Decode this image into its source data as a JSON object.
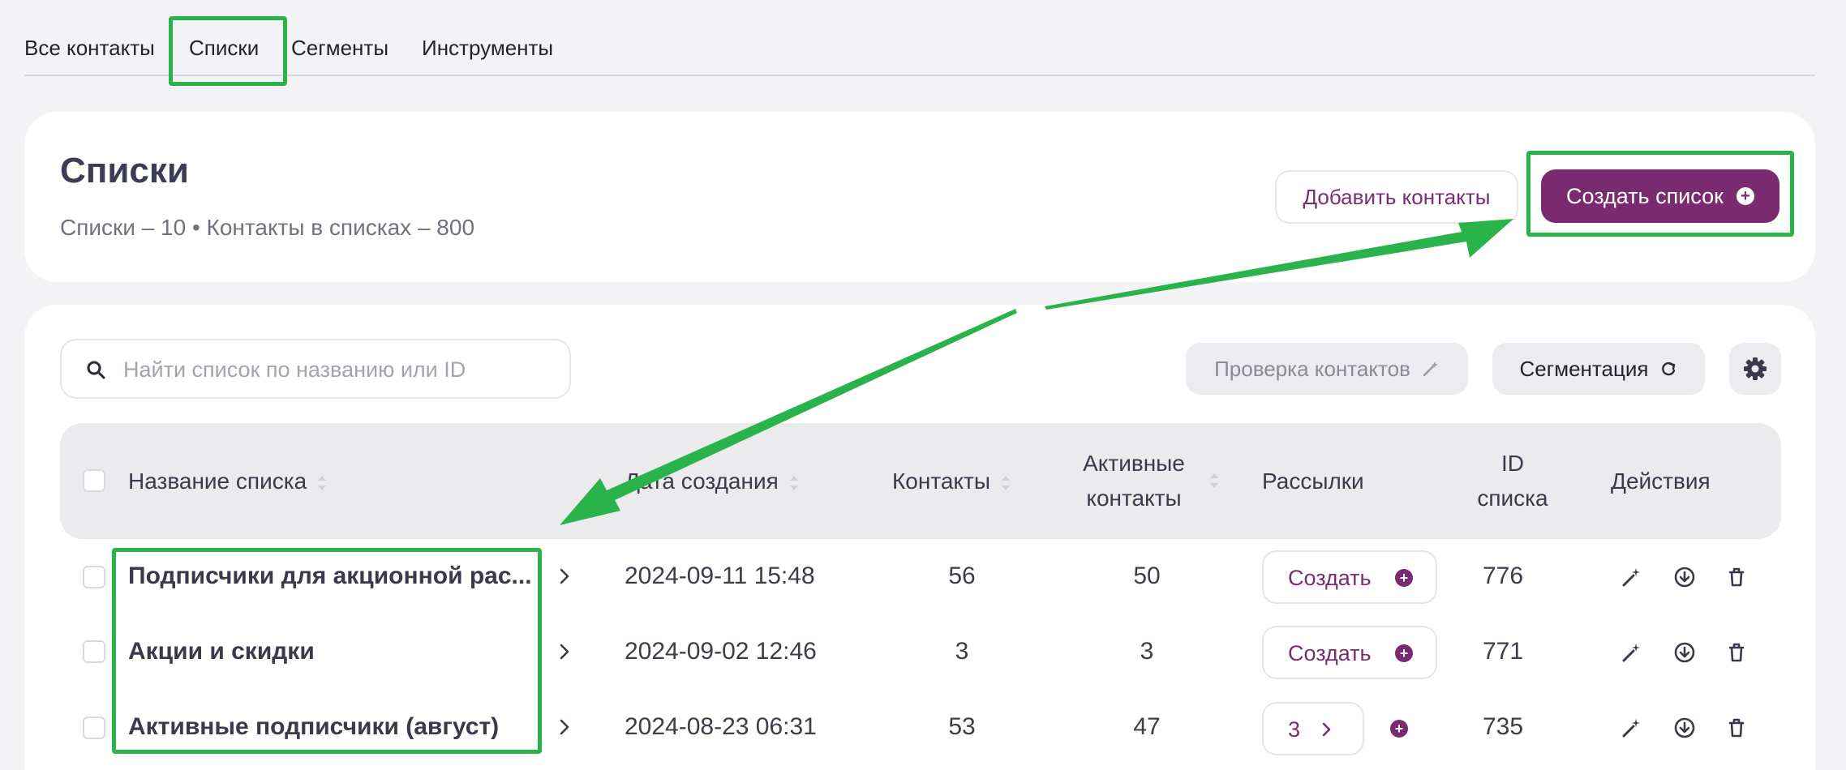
{
  "tabs": [
    {
      "label": "Все контакты"
    },
    {
      "label": "Списки"
    },
    {
      "label": "Сегменты"
    },
    {
      "label": "Инструменты"
    }
  ],
  "header": {
    "title": "Списки",
    "stats": "Списки – 10 • Контакты в списках – 800",
    "add_contacts_label": "Добавить контакты",
    "create_list_label": "Создать список"
  },
  "toolbar": {
    "search_placeholder": "Найти список по названию или ID",
    "check_contacts_label": "Проверка контактов",
    "segmentation_label": "Сегментация"
  },
  "table": {
    "columns": {
      "name": "Название списка",
      "created": "Дата создания",
      "contacts": "Контакты",
      "active_line1": "Активные",
      "active_line2": "контакты",
      "mailings": "Рассылки",
      "id_line1": "ID",
      "id_line2": "списка",
      "actions": "Действия"
    },
    "rows": [
      {
        "name": "Подписчики для акционной рас...",
        "created": "2024-09-11 15:48",
        "contacts": "56",
        "active": "50",
        "mailing_label": "Создать",
        "id": "776"
      },
      {
        "name": "Акции и скидки",
        "created": "2024-09-02 12:46",
        "contacts": "3",
        "active": "3",
        "mailing_label": "Создать",
        "id": "771"
      },
      {
        "name": "Активные подписчики (август)",
        "created": "2024-08-23 06:31",
        "contacts": "53",
        "active": "47",
        "mailing_count": "3",
        "id": "735"
      }
    ]
  },
  "colors": {
    "accent": "#7a2b6f",
    "highlight": "#2ab34a"
  }
}
